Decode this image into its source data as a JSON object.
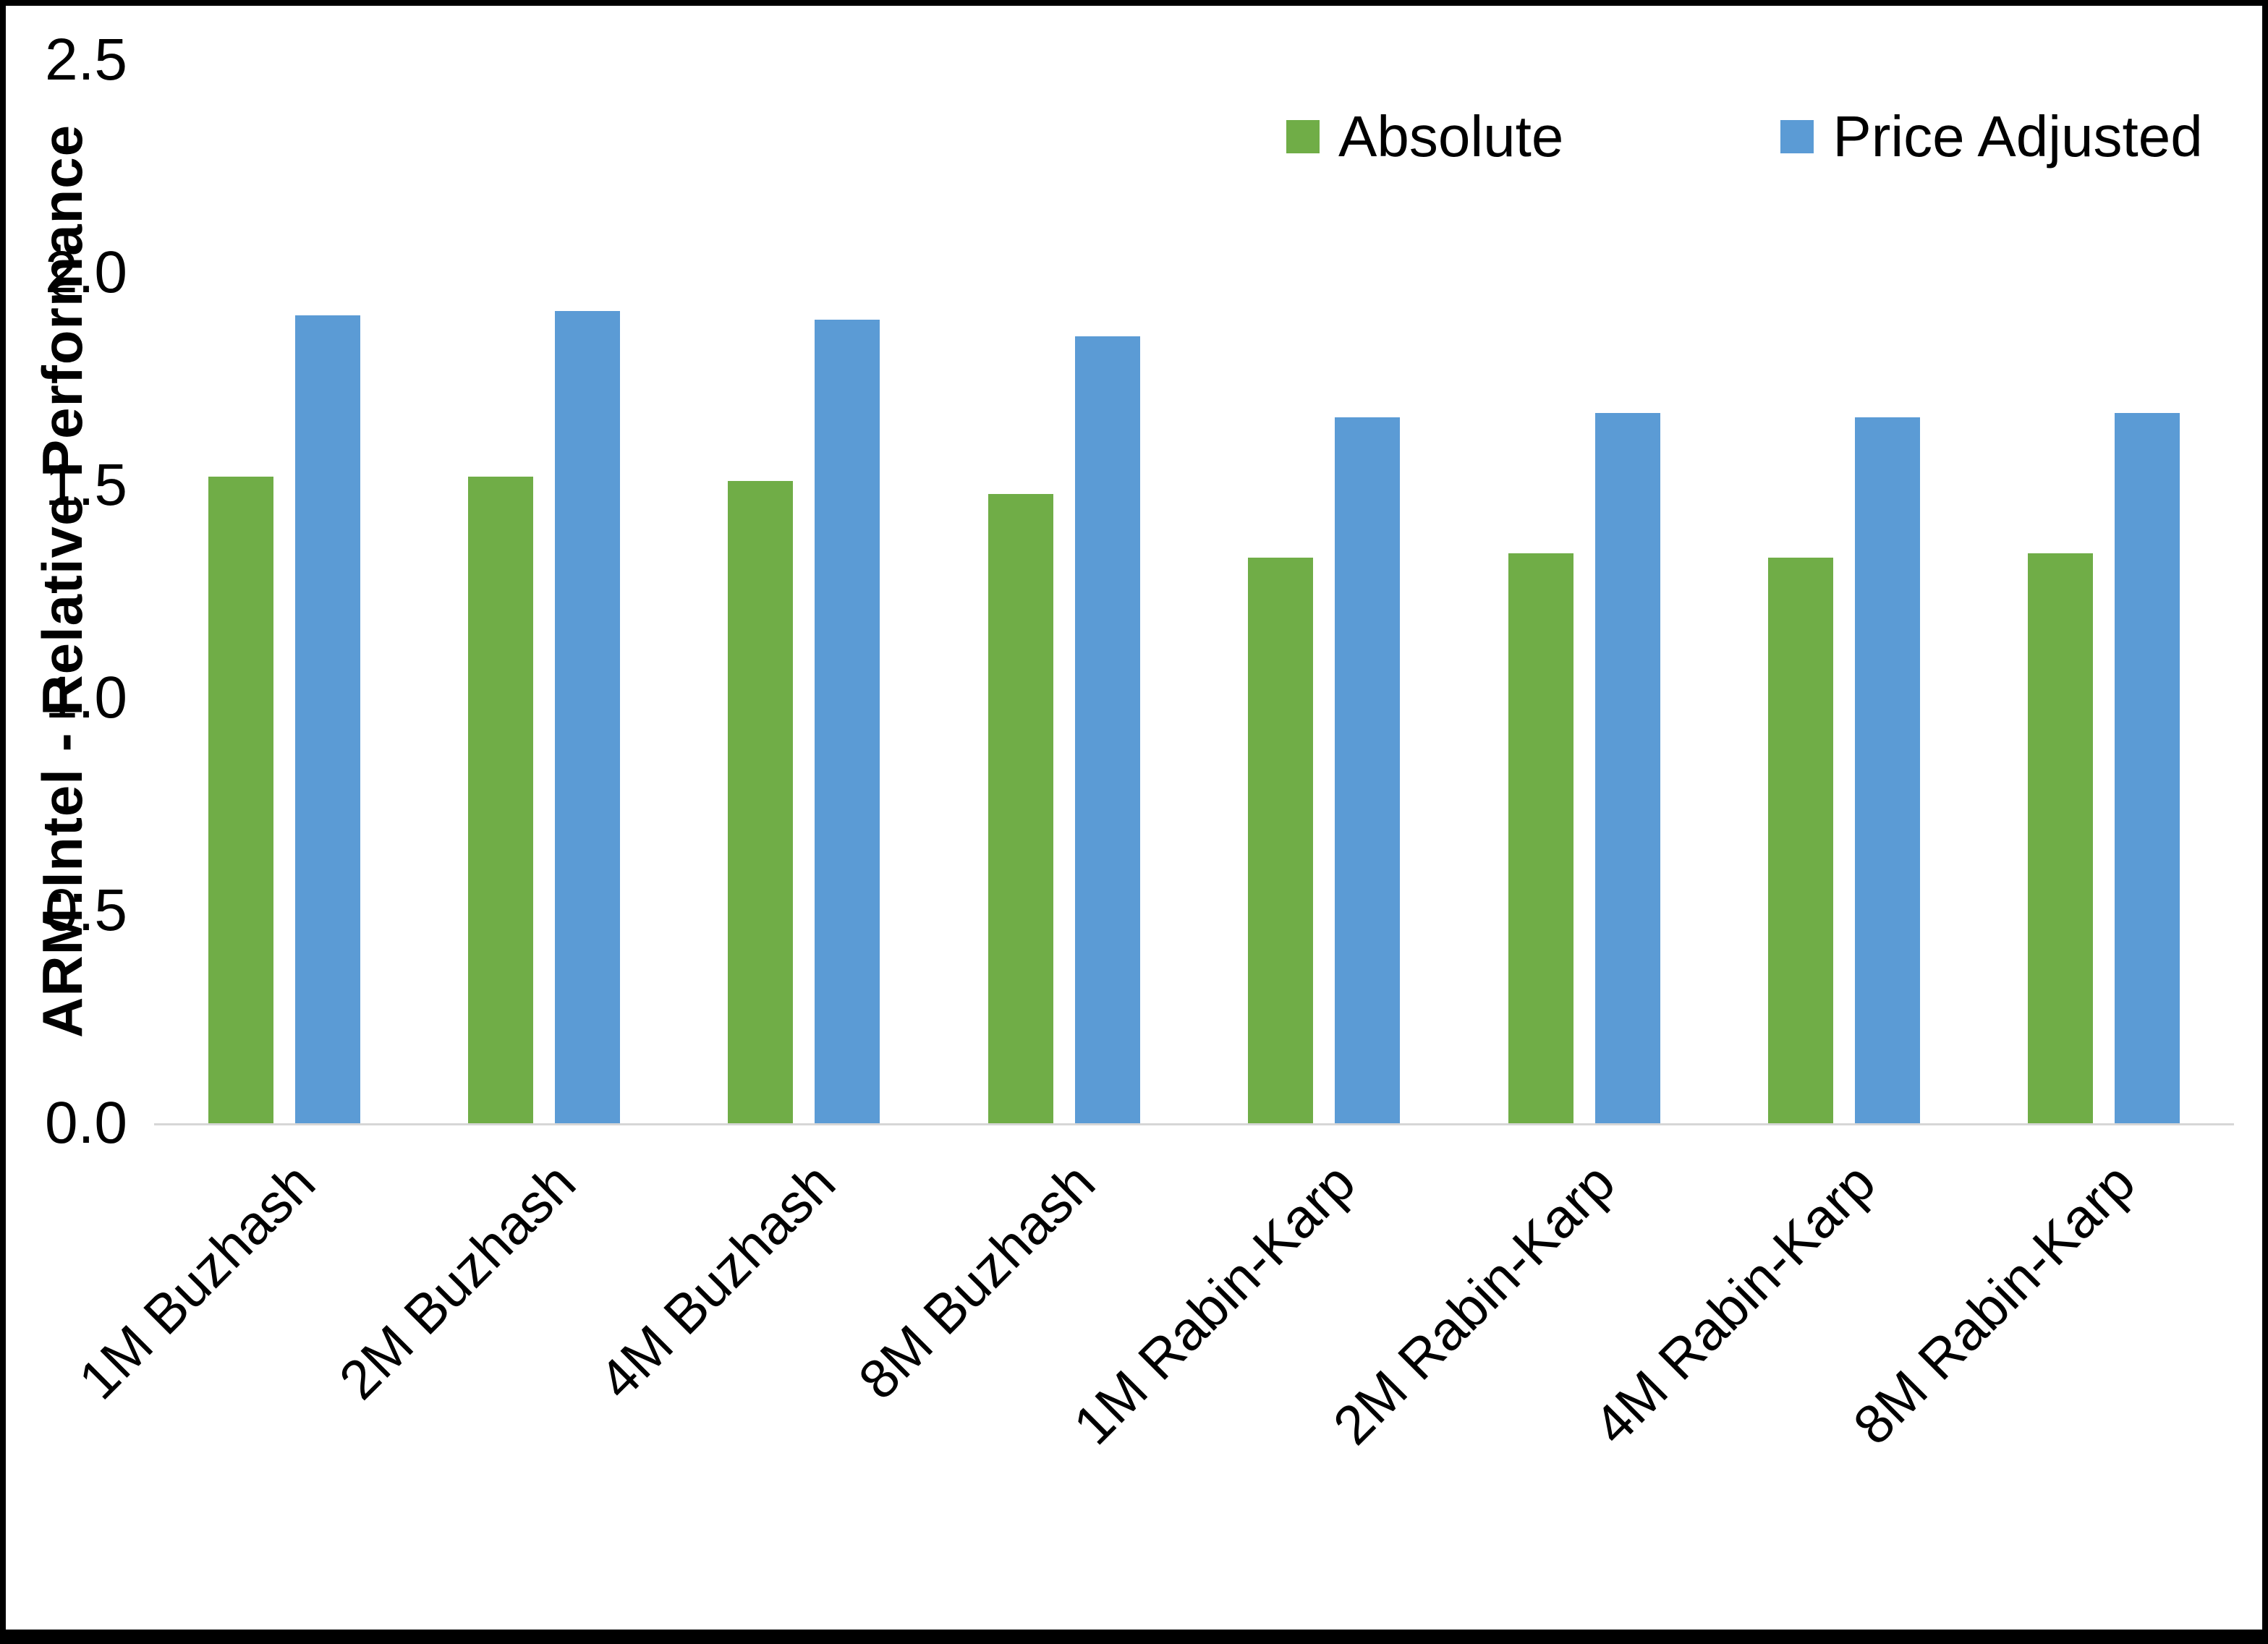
{
  "chart_data": {
    "type": "bar",
    "title": "",
    "xlabel": "",
    "ylabel": "ARM:Intel - Relative Performance",
    "ylim": [
      0,
      2.5
    ],
    "grid": false,
    "legend_position": "top-right",
    "yticks": [
      {
        "value": 0.0,
        "label": "0.0"
      },
      {
        "value": 0.5,
        "label": "0.5"
      },
      {
        "value": 1.0,
        "label": "1.0"
      },
      {
        "value": 1.5,
        "label": "1.5"
      },
      {
        "value": 2.0,
        "label": "2.0"
      },
      {
        "value": 2.5,
        "label": "2.5"
      }
    ],
    "categories": [
      "1M Buzhash",
      "2M Buzhash",
      "4M Buzhash",
      "8M Buzhash",
      "1M Rabin-Karp",
      "2M Rabin-Karp",
      "4M Rabin-Karp",
      "8M Rabin-Karp"
    ],
    "series": [
      {
        "key": "absolute",
        "name": "Absolute",
        "color": "#70AD47",
        "values": [
          1.52,
          1.52,
          1.51,
          1.48,
          1.33,
          1.34,
          1.33,
          1.34
        ]
      },
      {
        "key": "price-adjusted",
        "name": "Price Adjusted",
        "color": "#5B9BD5",
        "values": [
          1.9,
          1.91,
          1.89,
          1.85,
          1.66,
          1.67,
          1.66,
          1.67
        ]
      }
    ]
  },
  "frame": {
    "background": "#FFFFFF",
    "border_color": "#000000",
    "axis_line_color": "#D6D6D6"
  }
}
